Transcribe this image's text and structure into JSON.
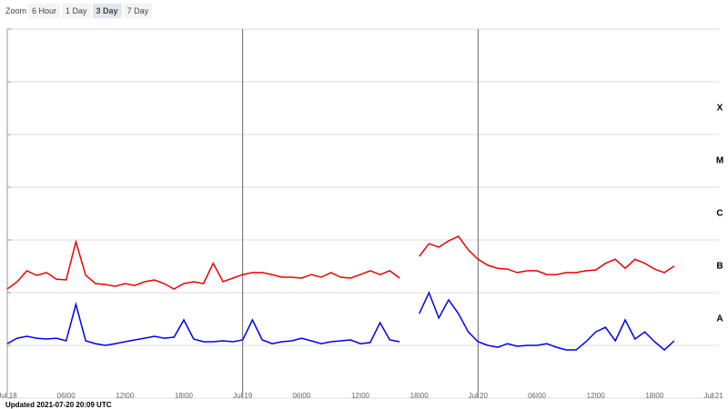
{
  "controls": {
    "label": "Zoom",
    "buttons": [
      "6 Hour",
      "1 Day",
      "3 Day",
      "7 Day"
    ],
    "active": 2
  },
  "footer": "Updated 2021-07-20 20:09 UTC",
  "chart_data": {
    "type": "line",
    "log_scale": true,
    "grid": true,
    "x": [
      "2021-07-18T00:00",
      "2021-07-18T01:00",
      "2021-07-18T02:00",
      "2021-07-18T03:00",
      "2021-07-18T04:00",
      "2021-07-18T05:00",
      "2021-07-18T06:00",
      "2021-07-18T07:00",
      "2021-07-18T08:00",
      "2021-07-18T09:00",
      "2021-07-18T10:00",
      "2021-07-18T11:00",
      "2021-07-18T12:00",
      "2021-07-18T13:00",
      "2021-07-18T14:00",
      "2021-07-18T15:00",
      "2021-07-18T16:00",
      "2021-07-18T17:00",
      "2021-07-18T18:00",
      "2021-07-18T19:00",
      "2021-07-18T20:00",
      "2021-07-18T21:00",
      "2021-07-18T22:00",
      "2021-07-18T23:00",
      "2021-07-19T00:00",
      "2021-07-19T01:00",
      "2021-07-19T02:00",
      "2021-07-19T03:00",
      "2021-07-19T04:00",
      "2021-07-19T05:00",
      "2021-07-19T06:00",
      "2021-07-19T07:00",
      "2021-07-19T08:00",
      "2021-07-19T09:00",
      "2021-07-19T10:00",
      "2021-07-19T11:00",
      "2021-07-19T12:00",
      "2021-07-19T13:00",
      "2021-07-19T14:00",
      "2021-07-19T15:00",
      "2021-07-19T16:00",
      "2021-07-19T17:00",
      "2021-07-19T18:00",
      "2021-07-19T19:00",
      "2021-07-19T20:00",
      "2021-07-19T21:00",
      "2021-07-19T22:00",
      "2021-07-19T23:00",
      "2021-07-20T00:00",
      "2021-07-20T01:00",
      "2021-07-20T02:00",
      "2021-07-20T03:00",
      "2021-07-20T04:00",
      "2021-07-20T05:00",
      "2021-07-20T06:00",
      "2021-07-20T07:00",
      "2021-07-20T08:00",
      "2021-07-20T09:00",
      "2021-07-20T10:00",
      "2021-07-20T11:00",
      "2021-07-20T12:00",
      "2021-07-20T13:00",
      "2021-07-20T14:00",
      "2021-07-20T15:00",
      "2021-07-20T16:00",
      "2021-07-20T17:00",
      "2021-07-20T18:00",
      "2021-07-20T19:00",
      "2021-07-20T20:00"
    ],
    "series": [
      {
        "color": "#ee0000",
        "values": [
          1.17e-07,
          1.61e-07,
          2.6e-07,
          2.13e-07,
          2.4e-07,
          1.81e-07,
          1.74e-07,
          9.2e-07,
          2.13e-07,
          1.49e-07,
          1.43e-07,
          1.32e-07,
          1.49e-07,
          1.37e-07,
          1.61e-07,
          1.74e-07,
          1.49e-07,
          1.17e-07,
          1.49e-07,
          1.61e-07,
          1.49e-07,
          3.6e-07,
          1.61e-07,
          1.89e-07,
          2.2e-07,
          2.4e-07,
          2.4e-07,
          2.2e-07,
          1.96e-07,
          1.96e-07,
          1.89e-07,
          2.2e-07,
          1.96e-07,
          2.4e-07,
          1.96e-07,
          1.89e-07,
          2.2e-07,
          2.6e-07,
          2.2e-07,
          2.6e-07,
          1.89e-07,
          null,
          4.9e-07,
          8.5e-07,
          7.3e-07,
          9.6e-07,
          1.17e-06,
          6.5e-07,
          4.3e-07,
          3.3e-07,
          2.9e-07,
          2.8e-07,
          2.4e-07,
          2.6e-07,
          2.6e-07,
          2.2e-07,
          2.2e-07,
          2.4e-07,
          2.4e-07,
          2.6e-07,
          2.7e-07,
          3.6e-07,
          4.3e-07,
          2.9e-07,
          4.3e-07,
          3.6e-07,
          2.8e-07,
          2.4e-07,
          3.2e-07
        ]
      },
      {
        "color": "#0000ee",
        "values": [
          1.08e-08,
          1.37e-08,
          1.49e-08,
          1.37e-08,
          1.32e-08,
          1.37e-08,
          1.22e-08,
          6e-08,
          1.22e-08,
          1.08e-08,
          1e-08,
          1.08e-08,
          1.17e-08,
          1.27e-08,
          1.37e-08,
          1.49e-08,
          1.37e-08,
          1.43e-08,
          3.04e-08,
          1.32e-08,
          1.17e-08,
          1.17e-08,
          1.22e-08,
          1.17e-08,
          1.27e-08,
          3.04e-08,
          1.27e-08,
          1.08e-08,
          1.17e-08,
          1.22e-08,
          1.37e-08,
          1.22e-08,
          1.08e-08,
          1.17e-08,
          1.22e-08,
          1.27e-08,
          1.08e-08,
          1.13e-08,
          2.7e-08,
          1.27e-08,
          1.17e-08,
          null,
          4e-08,
          1e-07,
          3.3e-08,
          7.3e-08,
          4e-08,
          1.8e-08,
          1.17e-08,
          1e-08,
          9.2e-09,
          1.08e-08,
          9.6e-09,
          1e-08,
          1e-08,
          1.08e-08,
          9.2e-09,
          8.2e-09,
          8.2e-09,
          1.17e-08,
          1.8e-08,
          2.2e-08,
          1.22e-08,
          3.04e-08,
          1.32e-08,
          1.8e-08,
          1.17e-08,
          8.2e-09,
          1.22e-08
        ]
      }
    ],
    "class_labels": [
      "A",
      "B",
      "C",
      "M",
      "X"
    ],
    "xlim": [
      "2021-07-18T00:00",
      "2021-07-21T00:00"
    ],
    "xticks": [
      {
        "value": "2021-07-18T00:00",
        "label": "Jul 18"
      },
      {
        "value": "2021-07-18T06:00",
        "label": "06:00"
      },
      {
        "value": "2021-07-18T12:00",
        "label": "12:00"
      },
      {
        "value": "2021-07-18T18:00",
        "label": "18:00"
      },
      {
        "value": "2021-07-19T00:00",
        "label": "Jul 19"
      },
      {
        "value": "2021-07-19T06:00",
        "label": "06:00"
      },
      {
        "value": "2021-07-19T12:00",
        "label": "12:00"
      },
      {
        "value": "2021-07-19T18:00",
        "label": "18:00"
      },
      {
        "value": "2021-07-20T00:00",
        "label": "Jul 20"
      },
      {
        "value": "2021-07-20T06:00",
        "label": "06:00"
      },
      {
        "value": "2021-07-20T12:00",
        "label": "12:00"
      },
      {
        "value": "2021-07-20T18:00",
        "label": "18:00"
      },
      {
        "value": "2021-07-21T00:00",
        "label": "Jul 21"
      }
    ],
    "ylim": [
      1e-09,
      0.01
    ],
    "yticks": [
      1e-09,
      1e-08,
      1e-07,
      1e-06,
      1e-05,
      0.0001,
      0.001,
      0.01
    ]
  }
}
